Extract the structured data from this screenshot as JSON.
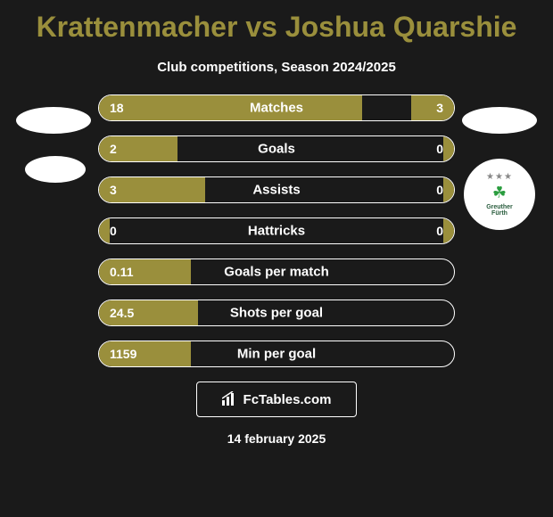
{
  "title": "Krattenmacher vs Joshua Quarshie",
  "subtitle": "Club competitions, Season 2024/2025",
  "date": "14 february 2025",
  "footer": {
    "text": "FcTables.com"
  },
  "colors": {
    "background": "#1a1a1a",
    "accent": "#9a8f3c",
    "text": "#ffffff",
    "border": "#ffffff",
    "badge_green": "#2a9d3e"
  },
  "stats": [
    {
      "label": "Matches",
      "left_value": "18",
      "right_value": "3",
      "left_width": 74,
      "right_width": 12
    },
    {
      "label": "Goals",
      "left_value": "2",
      "right_value": "0",
      "left_width": 22,
      "right_width": 3
    },
    {
      "label": "Assists",
      "left_value": "3",
      "right_value": "0",
      "left_width": 30,
      "right_width": 3
    },
    {
      "label": "Hattricks",
      "left_value": "0",
      "right_value": "0",
      "left_width": 3,
      "right_width": 3
    },
    {
      "label": "Goals per match",
      "left_value": "0.11",
      "right_value": "",
      "left_width": 26,
      "right_width": 0
    },
    {
      "label": "Shots per goal",
      "left_value": "24.5",
      "right_value": "",
      "left_width": 28,
      "right_width": 0
    },
    {
      "label": "Min per goal",
      "left_value": "1159",
      "right_value": "",
      "left_width": 26,
      "right_width": 0
    }
  ],
  "badge_right": {
    "line1": "Greuther",
    "line2": "Fürth"
  }
}
